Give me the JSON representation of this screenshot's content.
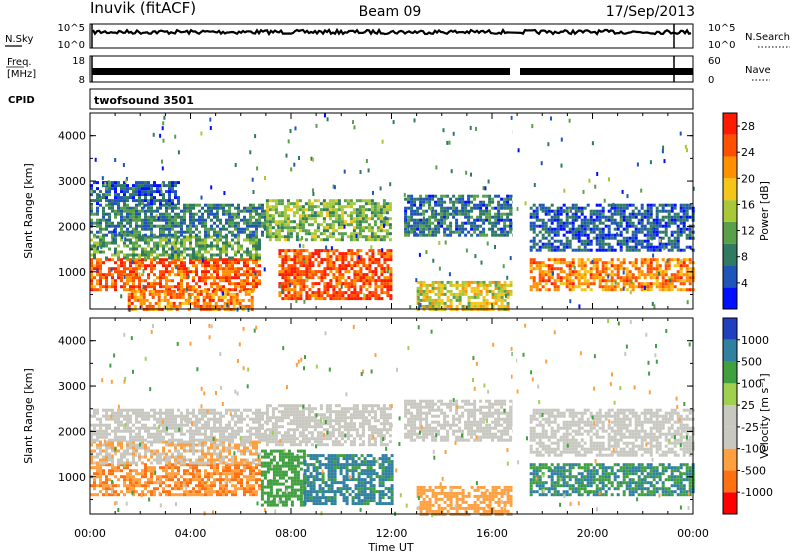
{
  "header": {
    "station": "Inuvik (fitACF)",
    "beam": "Beam 09",
    "date": "17/Sep/2013"
  },
  "top_panels": {
    "nsky_label": "N.Sky",
    "nsky_ticks": [
      "10^5",
      "10^0"
    ],
    "nsearch_label": "N.Search",
    "nsearch_ticks": [
      "10^5",
      "10^0"
    ],
    "freq_label": "Freq.",
    "freq_unit": "[MHz]",
    "freq_ticks": [
      "18",
      "8"
    ],
    "nave_label": "Nave",
    "nave_ticks": [
      "60",
      "0"
    ],
    "cpid_label": "CPID",
    "cpid_value": "twofsound 3501"
  },
  "chart_data": [
    {
      "type": "heatmap",
      "parameter": "Power",
      "ylabel": "Slant Range [km]",
      "ylim": [
        180,
        4500
      ],
      "yticks": [
        "1000",
        "2000",
        "3000",
        "4000"
      ],
      "colorbar_label": "Power [dB]",
      "colorbar_ticks": [
        "4",
        "8",
        "12",
        "16",
        "20",
        "24",
        "28"
      ],
      "colorscale": [
        "#0010ff",
        "#1f55b8",
        "#2f7a60",
        "#58a04a",
        "#a8c83a",
        "#f5c518",
        "#ff9000",
        "#ff5000",
        "#ff1a00"
      ],
      "bands": [
        {
          "t": [
            0.0,
            6.8
          ],
          "r": [
            600,
            1300
          ],
          "value": 26
        },
        {
          "t": [
            0.0,
            6.8
          ],
          "r": [
            1300,
            1800
          ],
          "value": 12
        },
        {
          "t": [
            0.0,
            7.0
          ],
          "r": [
            1800,
            2500
          ],
          "value": 9
        },
        {
          "t": [
            0.0,
            3.5
          ],
          "r": [
            2500,
            3000
          ],
          "value": 6
        },
        {
          "t": [
            1.5,
            6.5
          ],
          "r": [
            200,
            600
          ],
          "value": 24
        },
        {
          "t": [
            7.5,
            12.0
          ],
          "r": [
            400,
            1500
          ],
          "value": 27
        },
        {
          "t": [
            7.0,
            12.0
          ],
          "r": [
            1700,
            2600
          ],
          "value": 14
        },
        {
          "t": [
            12.5,
            16.8
          ],
          "r": [
            1800,
            2700
          ],
          "value": 8
        },
        {
          "t": [
            13.0,
            16.8
          ],
          "r": [
            200,
            800
          ],
          "value": 18
        },
        {
          "t": [
            17.5,
            24.0
          ],
          "r": [
            600,
            1300
          ],
          "value": 24
        },
        {
          "t": [
            17.5,
            24.0
          ],
          "r": [
            1500,
            2500
          ],
          "value": 6
        }
      ]
    },
    {
      "type": "heatmap",
      "parameter": "Velocity",
      "ylabel": "Slant Range [km]",
      "ylim": [
        180,
        4500
      ],
      "yticks": [
        "1000",
        "2000",
        "3000",
        "4000"
      ],
      "xlabel": "Time UT",
      "xticks": [
        "00:00",
        "04:00",
        "08:00",
        "12:00",
        "16:00",
        "20:00",
        "00:00"
      ],
      "xlim": [
        0,
        24
      ],
      "colorbar_label": "Velocity [m s⁻¹]",
      "colorbar_ticks": [
        "1000",
        "500",
        "100",
        "25",
        "-25",
        "-100",
        "-500",
        "-1000"
      ],
      "colorscale": [
        "#2040c0",
        "#3080a0",
        "#40a040",
        "#a0d050",
        "#c8c8c0",
        "#c8c8c0",
        "#ffa040",
        "#ff7010",
        "#ff0000"
      ],
      "bands": [
        {
          "t": [
            0.0,
            6.8
          ],
          "r": [
            600,
            1300
          ],
          "value": -300
        },
        {
          "t": [
            0.0,
            6.8
          ],
          "r": [
            1300,
            1800
          ],
          "value": -60
        },
        {
          "t": [
            0.0,
            7.0
          ],
          "r": [
            1800,
            2500
          ],
          "value": 0
        },
        {
          "t": [
            6.8,
            8.5
          ],
          "r": [
            400,
            1600
          ],
          "value": 150
        },
        {
          "t": [
            8.5,
            12.0
          ],
          "r": [
            400,
            1500
          ],
          "value": 400
        },
        {
          "t": [
            7.0,
            12.0
          ],
          "r": [
            1700,
            2600
          ],
          "value": 0
        },
        {
          "t": [
            12.5,
            16.8
          ],
          "r": [
            1800,
            2700
          ],
          "value": 0
        },
        {
          "t": [
            13.0,
            16.8
          ],
          "r": [
            200,
            800
          ],
          "value": -200
        },
        {
          "t": [
            17.5,
            24.0
          ],
          "r": [
            600,
            1300
          ],
          "value": 300
        },
        {
          "t": [
            17.5,
            24.0
          ],
          "r": [
            1500,
            2500
          ],
          "value": 0
        }
      ]
    }
  ]
}
